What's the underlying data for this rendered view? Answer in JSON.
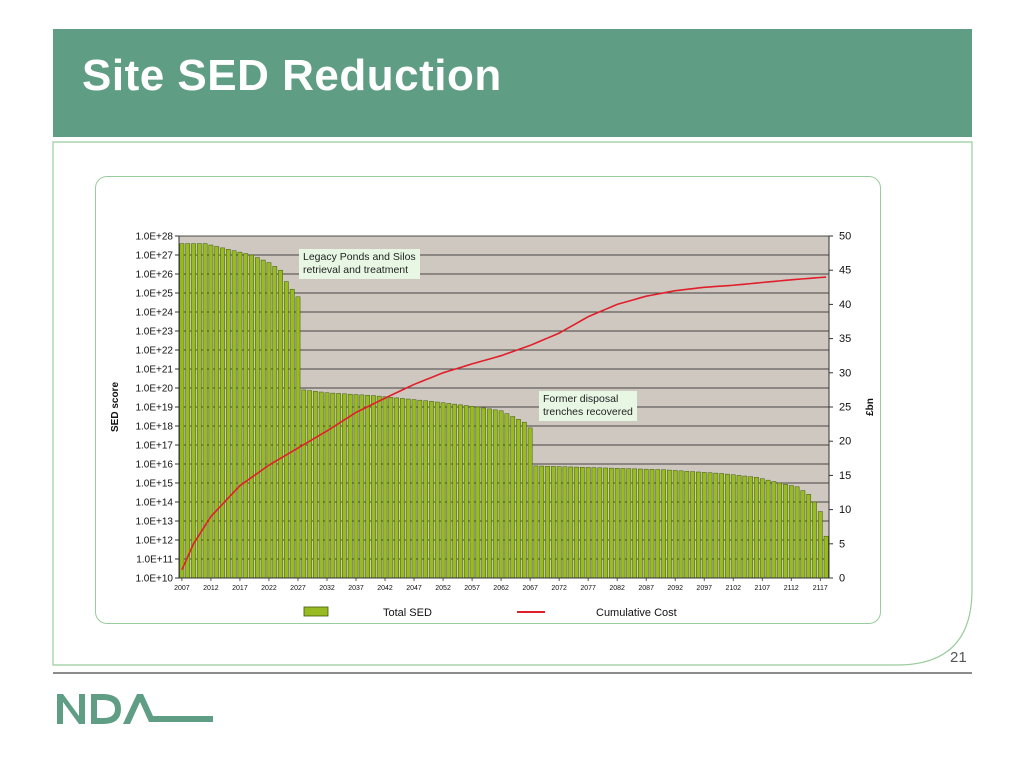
{
  "slide": {
    "title": "Site SED Reduction",
    "page_number": "21",
    "logo_text": "NDA"
  },
  "colors": {
    "title_bar": "#5f9e84",
    "bar_fill": "#99bb22",
    "line": "#e01f2a",
    "plot_bg": "#cfc8c0",
    "frame": "#9acb9c"
  },
  "chart_data": {
    "type": "bar",
    "title": "",
    "xlabel": "",
    "ylabel": "SED score",
    "y2label": "£bn",
    "y_scale": "log",
    "ylim_exponent": [
      10,
      28
    ],
    "y_ticks": [
      "1.0E+10",
      "1.0E+11",
      "1.0E+12",
      "1.0E+13",
      "1.0E+14",
      "1.0E+15",
      "1.0E+16",
      "1.0E+17",
      "1.0E+18",
      "1.0E+19",
      "1.0E+20",
      "1.0E+21",
      "1.0E+22",
      "1.0E+23",
      "1.0E+24",
      "1.0E+25",
      "1.0E+26",
      "1.0E+27",
      "1.0E+28"
    ],
    "y2lim": [
      0,
      50
    ],
    "y2_ticks": [
      "0",
      "5",
      "10",
      "15",
      "20",
      "25",
      "30",
      "35",
      "40",
      "45",
      "50"
    ],
    "x_start": 2007,
    "x_end": 2118,
    "x_tick_labels": [
      "2007",
      "2012",
      "2017",
      "2022",
      "2027",
      "2032",
      "2037",
      "2042",
      "2047",
      "2052",
      "2057",
      "2062",
      "2067",
      "2072",
      "2077",
      "2082",
      "2087",
      "2092",
      "2097",
      "2102",
      "2107",
      "2112",
      "2117"
    ],
    "grid": true,
    "legend_position": "bottom",
    "legend": [
      "Total SED",
      "Cumulative Cost"
    ],
    "annotations": [
      {
        "text_lines": [
          "Legacy Ponds and Silos",
          "retrieval and treatment"
        ],
        "near_year": 2027
      },
      {
        "text_lines": [
          "Former disposal",
          "trenches recovered"
        ],
        "near_year": 2067
      }
    ],
    "series": [
      {
        "name": "Total SED",
        "type": "bar",
        "log10_keypoints": [
          [
            2007,
            27.6
          ],
          [
            2011,
            27.6
          ],
          [
            2015,
            27.3
          ],
          [
            2019,
            27.0
          ],
          [
            2022,
            26.6
          ],
          [
            2024,
            26.2
          ],
          [
            2025,
            25.6
          ],
          [
            2026,
            25.2
          ],
          [
            2027,
            24.8
          ],
          [
            2028,
            19.9
          ],
          [
            2032,
            19.75
          ],
          [
            2040,
            19.6
          ],
          [
            2050,
            19.3
          ],
          [
            2058,
            19.0
          ],
          [
            2062,
            18.8
          ],
          [
            2064,
            18.5
          ],
          [
            2066,
            18.2
          ],
          [
            2067,
            17.9
          ],
          [
            2068,
            15.9
          ],
          [
            2090,
            15.7
          ],
          [
            2100,
            15.5
          ],
          [
            2106,
            15.3
          ],
          [
            2110,
            15.0
          ],
          [
            2113,
            14.8
          ],
          [
            2115,
            14.4
          ],
          [
            2116,
            14.0
          ],
          [
            2117,
            13.5
          ],
          [
            2118,
            12.2
          ]
        ]
      },
      {
        "name": "Cumulative Cost",
        "type": "line",
        "axis": "secondary",
        "keypoints": [
          [
            2007,
            1.2
          ],
          [
            2009,
            5
          ],
          [
            2012,
            9
          ],
          [
            2017,
            13.5
          ],
          [
            2022,
            16.5
          ],
          [
            2027,
            19
          ],
          [
            2032,
            21.5
          ],
          [
            2037,
            24.2
          ],
          [
            2042,
            26.3
          ],
          [
            2047,
            28.3
          ],
          [
            2052,
            30
          ],
          [
            2057,
            31.3
          ],
          [
            2062,
            32.5
          ],
          [
            2067,
            34
          ],
          [
            2072,
            35.8
          ],
          [
            2077,
            38.2
          ],
          [
            2082,
            40
          ],
          [
            2087,
            41.2
          ],
          [
            2092,
            42
          ],
          [
            2097,
            42.5
          ],
          [
            2102,
            42.8
          ],
          [
            2107,
            43.2
          ],
          [
            2112,
            43.6
          ],
          [
            2118,
            44
          ]
        ]
      }
    ]
  }
}
